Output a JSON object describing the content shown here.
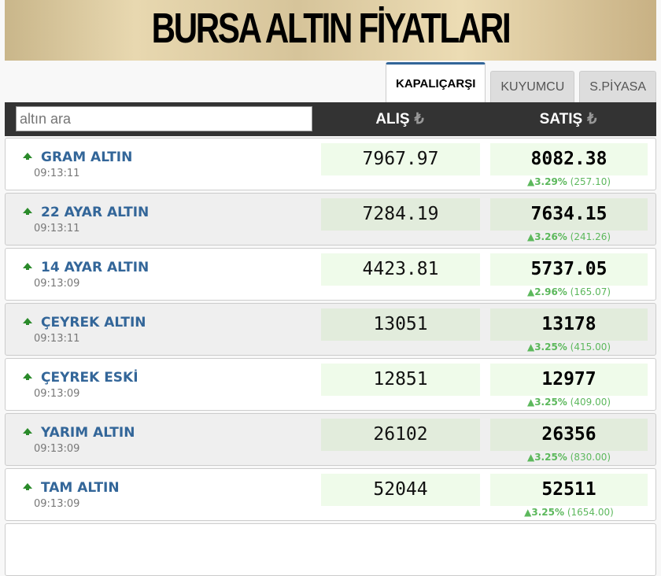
{
  "banner": {
    "title": "BURSA ALTIN FİYATLARI"
  },
  "tabs": [
    {
      "label": "KAPALIÇARŞI",
      "active": true
    },
    {
      "label": "KUYUMCU"
    },
    {
      "label": "S.PİYASA"
    }
  ],
  "header": {
    "search_placeholder": "altın ara",
    "buy_label": "ALIŞ",
    "sell_label": "SATIŞ",
    "currency_icon": "₺"
  },
  "rows": [
    {
      "name": "GRAM ALTIN",
      "time": "09:13:11",
      "buy": "7967.97",
      "sell": "8082.38",
      "pct": "3.29%",
      "diff": "(257.10)"
    },
    {
      "name": "22 AYAR ALTIN",
      "time": "09:13:11",
      "buy": "7284.19",
      "sell": "7634.15",
      "pct": "3.26%",
      "diff": "(241.26)"
    },
    {
      "name": "14 AYAR ALTIN",
      "time": "09:13:09",
      "buy": "4423.81",
      "sell": "5737.05",
      "pct": "2.96%",
      "diff": "(165.07)"
    },
    {
      "name": "ÇEYREK ALTIN",
      "time": "09:13:11",
      "buy": "13051",
      "sell": "13178",
      "pct": "3.25%",
      "diff": "(415.00)"
    },
    {
      "name": "ÇEYREK ESKİ",
      "time": "09:13:09",
      "buy": "12851",
      "sell": "12977",
      "pct": "3.25%",
      "diff": "(409.00)"
    },
    {
      "name": "YARIM ALTIN",
      "time": "09:13:09",
      "buy": "26102",
      "sell": "26356",
      "pct": "3.25%",
      "diff": "(830.00)"
    },
    {
      "name": "TAM ALTIN",
      "time": "09:13:09",
      "buy": "52044",
      "sell": "52511",
      "pct": "3.25%",
      "diff": "(1654.00)"
    }
  ],
  "colors": {
    "name": "#336699",
    "up": "#5cb85c",
    "header": "#333333"
  }
}
